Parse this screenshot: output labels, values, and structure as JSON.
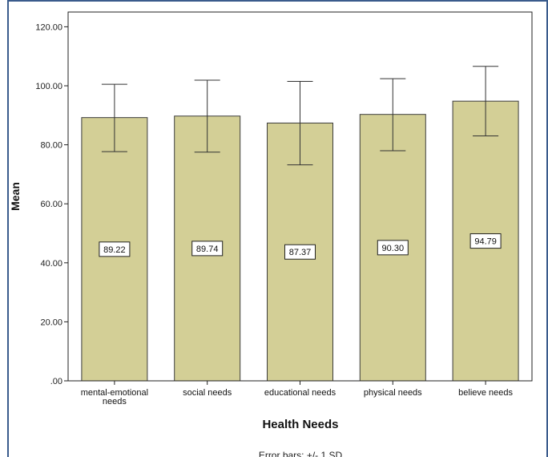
{
  "header_caption": "",
  "chart_data": {
    "type": "bar",
    "categories": [
      [
        "mental-emotional",
        "needs"
      ],
      [
        "social needs"
      ],
      [
        "educational needs"
      ],
      [
        "physical needs"
      ],
      [
        "believe needs"
      ]
    ],
    "values": [
      89.22,
      89.74,
      87.37,
      90.3,
      94.79
    ],
    "value_labels": [
      "89.22",
      "89.74",
      "87.37",
      "90.30",
      "94.79"
    ],
    "error_bars": {
      "low": [
        77.7,
        77.5,
        73.2,
        78.0,
        83.0
      ],
      "high": [
        100.5,
        101.9,
        101.5,
        102.4,
        106.6
      ]
    },
    "error_bar_note": "Error bars: +/- 1 SD",
    "xlabel": "Health Needs",
    "ylabel": "Mean",
    "ylim": [
      0,
      125
    ],
    "yticks": [
      0,
      20,
      40,
      60,
      80,
      100,
      120
    ],
    "ytick_labels": [
      ".00",
      "20.00",
      "40.00",
      "60.00",
      "80.00",
      "100.00",
      "120.00"
    ],
    "grid": false,
    "colors": {
      "bar_fill": "#d3cf96",
      "bar_stroke": "#3c3c3c",
      "axis": "#222222",
      "frame": "#3a5b8c",
      "plot_bg": "#ffffff"
    }
  }
}
